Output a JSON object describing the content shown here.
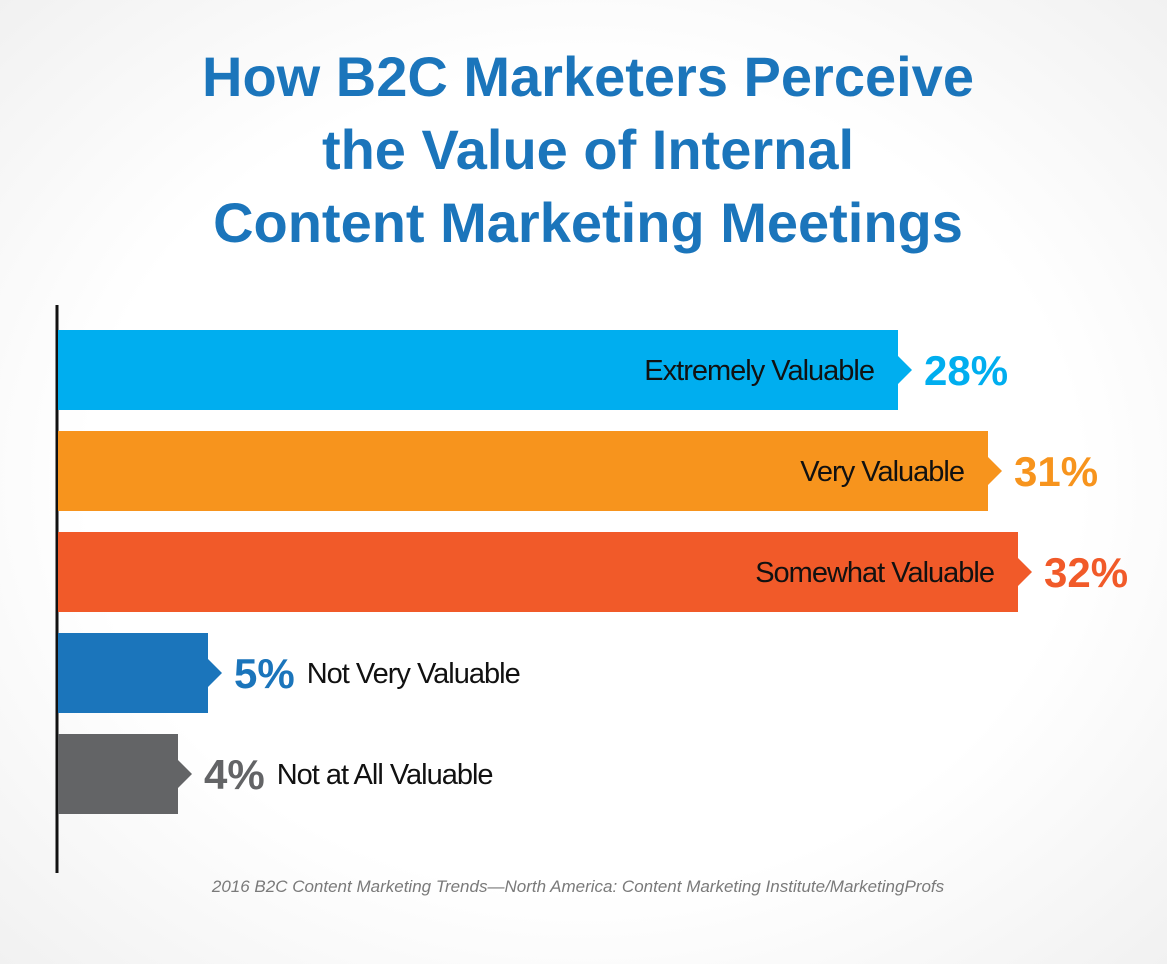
{
  "chart_data": {
    "type": "bar",
    "orientation": "horizontal",
    "title": [
      "How B2C Marketers Perceive",
      "the Value of Internal",
      "Content Marketing Meetings"
    ],
    "categories": [
      "Extremely Valuable",
      "Very Valuable",
      "Somewhat Valuable",
      "Not Very Valuable",
      "Not at All Valuable"
    ],
    "values": [
      28,
      31,
      32,
      5,
      4
    ],
    "value_labels": [
      "28%",
      "31%",
      "32%",
      "5%",
      "4%"
    ],
    "colors": [
      "#00aeef",
      "#f7941d",
      "#f15a29",
      "#1b75bb",
      "#636466"
    ],
    "source": "2016 B2C Content Marketing Trends—North America: Content Marketing Institute/MarketingProfs"
  }
}
